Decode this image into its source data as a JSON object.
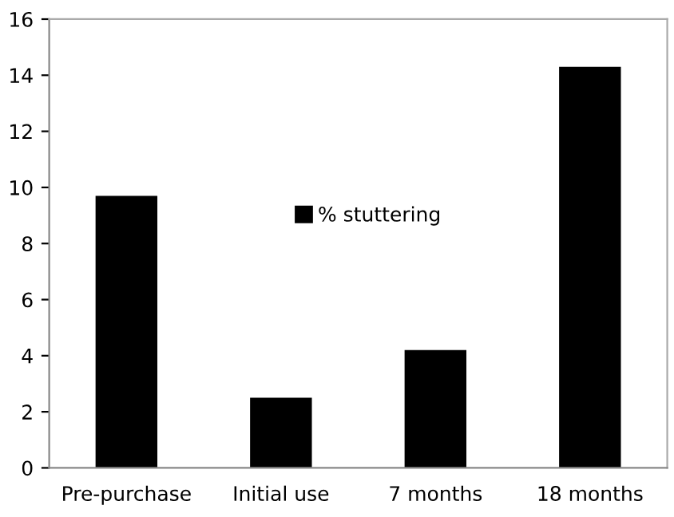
{
  "chart_data": {
    "type": "bar",
    "categories": [
      "Pre-purchase",
      "Initial use",
      "7 months",
      "18 months"
    ],
    "series": [
      {
        "name": "% stuttering",
        "color": "#000000",
        "values": [
          9.7,
          2.5,
          4.2,
          14.3
        ]
      }
    ],
    "ylim": [
      0,
      16
    ],
    "yticks": [
      0,
      2,
      4,
      6,
      8,
      10,
      12,
      14,
      16
    ],
    "grid": false,
    "legend": "center"
  }
}
